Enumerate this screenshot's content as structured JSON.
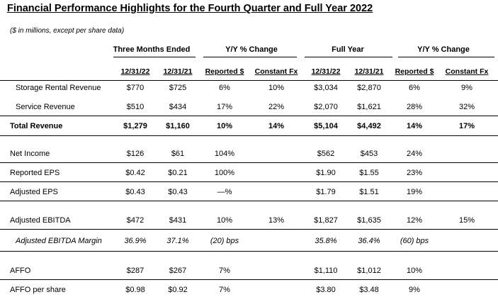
{
  "title": "Financial Performance Highlights for the Fourth Quarter and Full Year 2022",
  "subtitle": "($ in millions, except per share data)",
  "groups": {
    "three_months": "Three Months Ended",
    "yy_change_q": "Y/Y % Change",
    "full_year": "Full Year",
    "yy_change_fy": "Y/Y % Change"
  },
  "columns": [
    "12/31/22",
    "12/31/21",
    "Reported $",
    "Constant Fx",
    "12/31/22",
    "12/31/21",
    "Reported $",
    "Constant Fx"
  ],
  "rows": [
    {
      "label": "Storage Rental Revenue",
      "values": [
        "$770",
        "$725",
        "6%",
        "10%",
        "$3,034",
        "$2,870",
        "6%",
        "9%"
      ]
    },
    {
      "label": "Service Revenue",
      "values": [
        "$510",
        "$434",
        "17%",
        "22%",
        "$2,070",
        "$1,621",
        "28%",
        "32%"
      ]
    },
    {
      "label": "Total Revenue",
      "values": [
        "$1,279",
        "$1,160",
        "10%",
        "14%",
        "$5,104",
        "$4,492",
        "14%",
        "17%"
      ]
    },
    {
      "label": "Net Income",
      "values": [
        "$126",
        "$61",
        "104%",
        "",
        "$562",
        "$453",
        "24%",
        ""
      ]
    },
    {
      "label": "Reported EPS",
      "values": [
        "$0.42",
        "$0.21",
        "100%",
        "",
        "$1.90",
        "$1.55",
        "23%",
        ""
      ]
    },
    {
      "label": "Adjusted EPS",
      "values": [
        "$0.43",
        "$0.43",
        "—%",
        "",
        "$1.79",
        "$1.51",
        "19%",
        ""
      ]
    },
    {
      "label": "Adjusted EBITDA",
      "values": [
        "$472",
        "$431",
        "10%",
        "13%",
        "$1,827",
        "$1,635",
        "12%",
        "15%"
      ]
    },
    {
      "label": "Adjusted EBITDA Margin",
      "values": [
        "36.9%",
        "37.1%",
        "(20) bps",
        "",
        "35.8%",
        "36.4%",
        "(60) bps",
        ""
      ]
    },
    {
      "label": "AFFO",
      "values": [
        "$287",
        "$267",
        "7%",
        "",
        "$1,110",
        "$1,012",
        "10%",
        ""
      ]
    },
    {
      "label": "AFFO per share",
      "values": [
        "$0.98",
        "$0.92",
        "7%",
        "",
        "$3.80",
        "$3.48",
        "9%",
        ""
      ]
    }
  ]
}
